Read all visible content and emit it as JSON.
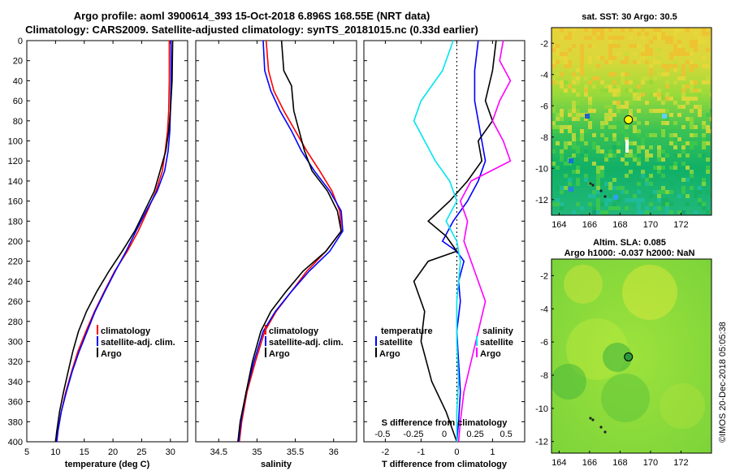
{
  "header": {
    "title_line1": "Argo profile: aoml 3900614_393 15-Oct-2018 6.896S 168.55E (NRT data)",
    "title_line2": "Climatology: CARS2009. Satellite-adjusted climatology: synTS_20181015.nc (0.33d earlier)"
  },
  "colors": {
    "climatology": "#ff0000",
    "satellite": "#0000ff",
    "argo": "#000000",
    "sat_salinity": "#00e5ee",
    "clim_salinity": "#ff00ff"
  },
  "chart_data": [
    {
      "id": "temperature",
      "type": "line",
      "xlabel": "temperature (deg C)",
      "ylabel": "depth",
      "xlim": [
        5,
        33
      ],
      "ylim": [
        400,
        0
      ],
      "xticks": [
        5,
        10,
        15,
        20,
        25,
        30
      ],
      "yticks": [
        0,
        20,
        40,
        60,
        80,
        100,
        120,
        140,
        160,
        180,
        200,
        220,
        240,
        260,
        280,
        300,
        320,
        340,
        360,
        380,
        400
      ],
      "legend": [
        {
          "label": "climatology",
          "color": "#ff0000"
        },
        {
          "label": "satellite-adj. clim.",
          "color": "#0000ff"
        },
        {
          "label": "Argo",
          "color": "#000000"
        }
      ],
      "series": [
        {
          "name": "climatology",
          "color": "#ff0000",
          "points": [
            [
              29.8,
              0
            ],
            [
              29.8,
              40
            ],
            [
              29.7,
              70
            ],
            [
              29.5,
              90
            ],
            [
              29.1,
              110
            ],
            [
              28.6,
              130
            ],
            [
              27.5,
              150
            ],
            [
              26.0,
              170
            ],
            [
              24.4,
              190
            ],
            [
              22.5,
              210
            ],
            [
              20.3,
              230
            ],
            [
              18.5,
              250
            ],
            [
              16.8,
              270
            ],
            [
              15.3,
              290
            ],
            [
              13.9,
              310
            ],
            [
              12.8,
              330
            ],
            [
              11.8,
              350
            ],
            [
              11.0,
              370
            ],
            [
              10.4,
              390
            ],
            [
              10.2,
              400
            ]
          ]
        },
        {
          "name": "satellite-adj. clim.",
          "color": "#0000ff",
          "points": [
            [
              30.1,
              0
            ],
            [
              30.1,
              40
            ],
            [
              30.0,
              70
            ],
            [
              29.9,
              90
            ],
            [
              29.6,
              110
            ],
            [
              29.0,
              130
            ],
            [
              27.7,
              150
            ],
            [
              25.8,
              170
            ],
            [
              24.0,
              190
            ],
            [
              22.3,
              210
            ],
            [
              20.4,
              230
            ],
            [
              18.6,
              250
            ],
            [
              16.9,
              270
            ],
            [
              15.5,
              290
            ],
            [
              14.1,
              310
            ],
            [
              12.9,
              330
            ],
            [
              11.9,
              350
            ],
            [
              11.0,
              370
            ],
            [
              10.4,
              390
            ],
            [
              10.2,
              400
            ]
          ]
        },
        {
          "name": "Argo",
          "color": "#000000",
          "points": [
            [
              30.4,
              0
            ],
            [
              30.3,
              40
            ],
            [
              30.0,
              70
            ],
            [
              29.7,
              90
            ],
            [
              29.2,
              110
            ],
            [
              28.2,
              130
            ],
            [
              27.2,
              150
            ],
            [
              25.5,
              170
            ],
            [
              23.8,
              190
            ],
            [
              21.6,
              210
            ],
            [
              19.3,
              230
            ],
            [
              17.2,
              250
            ],
            [
              15.4,
              270
            ],
            [
              14.0,
              290
            ],
            [
              13.0,
              310
            ],
            [
              12.2,
              330
            ],
            [
              11.4,
              350
            ],
            [
              10.7,
              370
            ],
            [
              10.2,
              390
            ],
            [
              10.0,
              400
            ]
          ]
        }
      ]
    },
    {
      "id": "salinity",
      "type": "line",
      "xlabel": "salinity",
      "ylabel": "depth",
      "xlim": [
        34.2,
        36.3
      ],
      "ylim": [
        400,
        0
      ],
      "xticks": [
        34.5,
        35,
        35.5,
        36
      ],
      "legend": [
        {
          "label": "climatology",
          "color": "#ff0000"
        },
        {
          "label": "satellite-adj. clim.",
          "color": "#0000ff"
        },
        {
          "label": "Argo",
          "color": "#000000"
        }
      ],
      "series": [
        {
          "name": "climatology",
          "color": "#ff0000",
          "points": [
            [
              35.12,
              0
            ],
            [
              35.15,
              30
            ],
            [
              35.22,
              50
            ],
            [
              35.35,
              70
            ],
            [
              35.5,
              90
            ],
            [
              35.65,
              110
            ],
            [
              35.82,
              130
            ],
            [
              35.98,
              150
            ],
            [
              36.08,
              170
            ],
            [
              36.1,
              190
            ],
            [
              35.9,
              210
            ],
            [
              35.65,
              230
            ],
            [
              35.45,
              250
            ],
            [
              35.25,
              270
            ],
            [
              35.1,
              290
            ],
            [
              34.98,
              320
            ],
            [
              34.87,
              350
            ],
            [
              34.8,
              380
            ],
            [
              34.77,
              400
            ]
          ]
        },
        {
          "name": "satellite-adj. clim.",
          "color": "#0000ff",
          "points": [
            [
              35.08,
              0
            ],
            [
              35.1,
              30
            ],
            [
              35.18,
              50
            ],
            [
              35.3,
              70
            ],
            [
              35.45,
              90
            ],
            [
              35.58,
              110
            ],
            [
              35.75,
              130
            ],
            [
              35.95,
              150
            ],
            [
              36.1,
              170
            ],
            [
              36.12,
              190
            ],
            [
              35.95,
              210
            ],
            [
              35.68,
              230
            ],
            [
              35.45,
              250
            ],
            [
              35.24,
              270
            ],
            [
              35.08,
              290
            ],
            [
              34.96,
              320
            ],
            [
              34.86,
              350
            ],
            [
              34.79,
              380
            ],
            [
              34.76,
              400
            ]
          ]
        },
        {
          "name": "Argo",
          "color": "#000000",
          "points": [
            [
              35.32,
              0
            ],
            [
              35.35,
              30
            ],
            [
              35.45,
              45
            ],
            [
              35.48,
              70
            ],
            [
              35.55,
              90
            ],
            [
              35.62,
              110
            ],
            [
              35.72,
              130
            ],
            [
              35.92,
              150
            ],
            [
              36.05,
              170
            ],
            [
              36.1,
              190
            ],
            [
              35.9,
              210
            ],
            [
              35.6,
              230
            ],
            [
              35.38,
              250
            ],
            [
              35.18,
              270
            ],
            [
              35.05,
              290
            ],
            [
              34.94,
              320
            ],
            [
              34.86,
              350
            ],
            [
              34.78,
              380
            ],
            [
              34.75,
              400
            ]
          ]
        }
      ]
    },
    {
      "id": "difference",
      "type": "line",
      "xlabel": "T difference from climatology",
      "xlabel_top": "S difference from climatology",
      "xlim": [
        -2.6,
        1.9
      ],
      "ylim": [
        400,
        0
      ],
      "xticks": [
        -2,
        -1,
        0,
        1
      ],
      "xticks_s": [
        -0.5,
        -0.25,
        0,
        0.25,
        0.5
      ],
      "legend_temperature": {
        "title": "temperature",
        "items": [
          {
            "label": "satellite",
            "color": "#0000ff"
          },
          {
            "label": "Argo",
            "color": "#000000"
          }
        ]
      },
      "legend_salinity": {
        "title": "salinity",
        "items": [
          {
            "label": "satellite",
            "color": "#00e5ee"
          },
          {
            "label": "Argo",
            "color": "#ff00ff"
          }
        ]
      },
      "series": [
        {
          "name": "T satellite",
          "color": "#0000ff",
          "points": [
            [
              0.6,
              0
            ],
            [
              0.5,
              30
            ],
            [
              0.5,
              60
            ],
            [
              0.6,
              80
            ],
            [
              0.7,
              100
            ],
            [
              0.8,
              120
            ],
            [
              0.6,
              140
            ],
            [
              0.3,
              160
            ],
            [
              -0.1,
              180
            ],
            [
              -0.4,
              200
            ],
            [
              0.0,
              210
            ],
            [
              0.2,
              220
            ],
            [
              0.05,
              240
            ],
            [
              0.1,
              260
            ],
            [
              0.0,
              290
            ],
            [
              0.05,
              320
            ],
            [
              0.1,
              350
            ],
            [
              0.05,
              380
            ],
            [
              0.0,
              400
            ]
          ]
        },
        {
          "name": "T Argo",
          "color": "#000000",
          "points": [
            [
              1.1,
              0
            ],
            [
              1.0,
              30
            ],
            [
              0.8,
              60
            ],
            [
              1.0,
              80
            ],
            [
              0.6,
              100
            ],
            [
              0.7,
              120
            ],
            [
              0.3,
              140
            ],
            [
              -0.2,
              160
            ],
            [
              -0.8,
              180
            ],
            [
              -0.3,
              195
            ],
            [
              0.0,
              210
            ],
            [
              -0.8,
              220
            ],
            [
              -1.2,
              240
            ],
            [
              -0.9,
              270
            ],
            [
              -1.0,
              300
            ],
            [
              -0.7,
              340
            ],
            [
              -0.3,
              370
            ],
            [
              -0.1,
              390
            ],
            [
              0.0,
              400
            ]
          ]
        },
        {
          "name": "S satellite",
          "color": "#00e5ee",
          "points": [
            [
              -0.1,
              0
            ],
            [
              -0.4,
              30
            ],
            [
              -1.0,
              60
            ],
            [
              -1.2,
              80
            ],
            [
              -0.9,
              100
            ],
            [
              -0.6,
              120
            ],
            [
              -0.2,
              140
            ],
            [
              0.0,
              160
            ],
            [
              -0.3,
              180
            ],
            [
              0.0,
              200
            ],
            [
              0.1,
              220
            ],
            [
              0.0,
              260
            ],
            [
              0.0,
              300
            ],
            [
              0.05,
              340
            ],
            [
              0.0,
              370
            ],
            [
              0.0,
              400
            ]
          ]
        },
        {
          "name": "S Argo",
          "color": "#ff00ff",
          "points": [
            [
              1.3,
              0
            ],
            [
              1.2,
              20
            ],
            [
              1.5,
              40
            ],
            [
              1.2,
              60
            ],
            [
              1.0,
              80
            ],
            [
              1.3,
              100
            ],
            [
              1.5,
              120
            ],
            [
              0.4,
              140
            ],
            [
              0.1,
              160
            ],
            [
              0.3,
              180
            ],
            [
              0.2,
              200
            ],
            [
              0.5,
              230
            ],
            [
              0.8,
              260
            ],
            [
              0.6,
              290
            ],
            [
              0.4,
              320
            ],
            [
              0.2,
              350
            ],
            [
              0.1,
              380
            ],
            [
              0.05,
              400
            ]
          ]
        }
      ]
    },
    {
      "id": "sst_map",
      "type": "heatmap",
      "title": "sat. SST: 30 Argo: 30.5",
      "xlim": [
        163.5,
        174
      ],
      "ylim": [
        -13,
        -1
      ],
      "xticks": [
        164,
        166,
        168,
        170,
        172
      ],
      "yticks": [
        -2,
        -4,
        -6,
        -8,
        -10,
        -12
      ],
      "argo_position": [
        168.55,
        -6.896
      ]
    },
    {
      "id": "sla_map",
      "type": "heatmap",
      "title_line1": "Altim. SLA: 0.085",
      "title_line2": "Argo h1000: -0.037 h2000: NaN",
      "xlim": [
        163.5,
        174
      ],
      "ylim": [
        -12.7,
        -1
      ],
      "xticks": [
        164,
        166,
        168,
        170,
        172
      ],
      "yticks": [
        -2,
        -4,
        -6,
        -8,
        -10,
        -12
      ],
      "argo_position": [
        168.55,
        -6.896
      ]
    }
  ],
  "watermark": "©IMOS 20-Dec-2018 05:05:38"
}
